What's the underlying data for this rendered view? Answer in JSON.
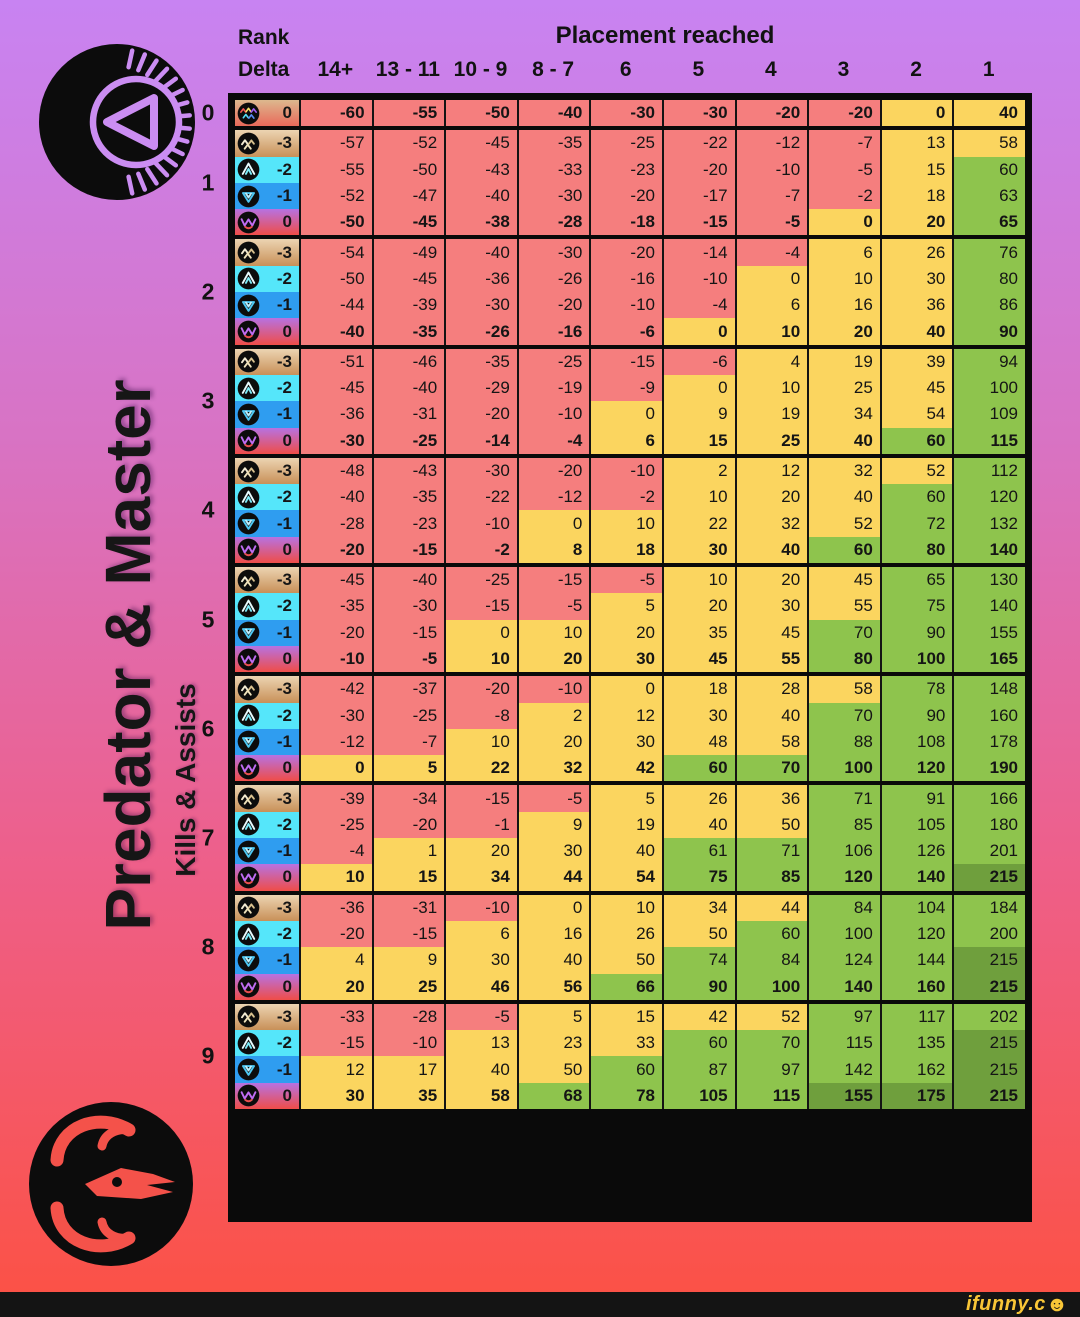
{
  "header": {
    "rank_label": "Rank",
    "delta_label": "Delta",
    "placement_label": "Placement reached"
  },
  "watermark": {
    "text": "ifunny.c",
    "smiley": "☻"
  },
  "icons": {
    "top_logo": "apex-predator-logo",
    "bottom_logo": "dragon-skull-logo",
    "badge_all": "all-ranks-badge",
    "badge_m3": "gold-badge",
    "badge_m2": "platinum-badge",
    "badge_m1": "diamond-badge",
    "badge_0": "master-badge"
  },
  "colors": {
    "red": "#f57e7e",
    "yellow": "#fbd55f",
    "green": "#8ec44d",
    "dark_green": "#6f9f3d",
    "bg_top": "#c883f2",
    "bg_bottom": "#fc5143",
    "logo_purple": "#cb8df2",
    "logo_red": "#f4524a",
    "watermark_yellow": "#f9c637"
  },
  "chart_data": {
    "type": "heatmap",
    "title": "Predator & Master",
    "subtitle": "Kills & Assists",
    "columns": [
      "14+",
      "13 - 11",
      "10 - 9",
      "8 - 7",
      "6",
      "5",
      "4",
      "3",
      "2",
      "1"
    ],
    "color_key": {
      "r": "red (RP loss)",
      "y": "yellow (0 to 59 RP)",
      "g": "green (60+ RP)",
      "d": "dark green (capped)"
    },
    "groups": [
      {
        "kills": "0",
        "rows": [
          {
            "delta": "0",
            "badge": "all-ranks",
            "bold": true,
            "values": [
              -60,
              -55,
              -50,
              -40,
              -30,
              -30,
              -20,
              -20,
              0,
              40
            ],
            "colors": "rrrrrrrryy"
          }
        ]
      },
      {
        "kills": "1",
        "rows": [
          {
            "delta": "-3",
            "badge": "gold",
            "bold": false,
            "values": [
              -57,
              -52,
              -45,
              -35,
              -25,
              -22,
              -12,
              -7,
              13,
              58
            ],
            "colors": "rrrrrrrryy"
          },
          {
            "delta": "-2",
            "badge": "platinum",
            "bold": false,
            "values": [
              -55,
              -50,
              -43,
              -33,
              -23,
              -20,
              -10,
              -5,
              15,
              60
            ],
            "colors": "rrrrrrrryg"
          },
          {
            "delta": "-1",
            "badge": "diamond",
            "bold": false,
            "values": [
              -52,
              -47,
              -40,
              -30,
              -20,
              -17,
              -7,
              -2,
              18,
              63
            ],
            "colors": "rrrrrrrryg"
          },
          {
            "delta": "0",
            "badge": "master",
            "bold": true,
            "values": [
              -50,
              -45,
              -38,
              -28,
              -18,
              -15,
              -5,
              0,
              20,
              65
            ],
            "colors": "rrrrrrryyg"
          }
        ]
      },
      {
        "kills": "2",
        "rows": [
          {
            "delta": "-3",
            "badge": "gold",
            "bold": false,
            "values": [
              -54,
              -49,
              -40,
              -30,
              -20,
              -14,
              -4,
              6,
              26,
              76
            ],
            "colors": "rrrrrrryyg"
          },
          {
            "delta": "-2",
            "badge": "platinum",
            "bold": false,
            "values": [
              -50,
              -45,
              -36,
              -26,
              -16,
              -10,
              0,
              10,
              30,
              80
            ],
            "colors": "rrrrrryyyg"
          },
          {
            "delta": "-1",
            "badge": "diamond",
            "bold": false,
            "values": [
              -44,
              -39,
              -30,
              -20,
              -10,
              -4,
              6,
              16,
              36,
              86
            ],
            "colors": "rrrrrryyyg"
          },
          {
            "delta": "0",
            "badge": "master",
            "bold": true,
            "values": [
              -40,
              -35,
              -26,
              -16,
              -6,
              0,
              10,
              20,
              40,
              90
            ],
            "colors": "rrrrryyyyg"
          }
        ]
      },
      {
        "kills": "3",
        "rows": [
          {
            "delta": "-3",
            "badge": "gold",
            "bold": false,
            "values": [
              -51,
              -46,
              -35,
              -25,
              -15,
              -6,
              4,
              19,
              39,
              94
            ],
            "colors": "rrrrrryyyg"
          },
          {
            "delta": "-2",
            "badge": "platinum",
            "bold": false,
            "values": [
              -45,
              -40,
              -29,
              -19,
              -9,
              0,
              10,
              25,
              45,
              100
            ],
            "colors": "rrrrryyyyg"
          },
          {
            "delta": "-1",
            "badge": "diamond",
            "bold": false,
            "values": [
              -36,
              -31,
              -20,
              -10,
              0,
              9,
              19,
              34,
              54,
              109
            ],
            "colors": "rrrryyyyyg"
          },
          {
            "delta": "0",
            "badge": "master",
            "bold": true,
            "values": [
              -30,
              -25,
              -14,
              -4,
              6,
              15,
              25,
              40,
              60,
              115
            ],
            "colors": "rrrryyyygg"
          }
        ]
      },
      {
        "kills": "4",
        "rows": [
          {
            "delta": "-3",
            "badge": "gold",
            "bold": false,
            "values": [
              -48,
              -43,
              -30,
              -20,
              -10,
              2,
              12,
              32,
              52,
              112
            ],
            "colors": "rrrrryyyyg"
          },
          {
            "delta": "-2",
            "badge": "platinum",
            "bold": false,
            "values": [
              -40,
              -35,
              -22,
              -12,
              -2,
              10,
              20,
              40,
              60,
              120
            ],
            "colors": "rrrrryyygg"
          },
          {
            "delta": "-1",
            "badge": "diamond",
            "bold": false,
            "values": [
              -28,
              -23,
              -10,
              0,
              10,
              22,
              32,
              52,
              72,
              132
            ],
            "colors": "rrryyyyygg"
          },
          {
            "delta": "0",
            "badge": "master",
            "bold": true,
            "values": [
              -20,
              -15,
              -2,
              8,
              18,
              30,
              40,
              60,
              80,
              140
            ],
            "colors": "rrryyyyggg"
          }
        ]
      },
      {
        "kills": "5",
        "rows": [
          {
            "delta": "-3",
            "badge": "gold",
            "bold": false,
            "values": [
              -45,
              -40,
              -25,
              -15,
              -5,
              10,
              20,
              45,
              65,
              130
            ],
            "colors": "rrrrryyygg"
          },
          {
            "delta": "-2",
            "badge": "platinum",
            "bold": false,
            "values": [
              -35,
              -30,
              -15,
              -5,
              5,
              20,
              30,
              55,
              75,
              140
            ],
            "colors": "rrrryyyygg"
          },
          {
            "delta": "-1",
            "badge": "diamond",
            "bold": false,
            "values": [
              -20,
              -15,
              0,
              10,
              20,
              35,
              45,
              70,
              90,
              155
            ],
            "colors": "rryyyyyggg"
          },
          {
            "delta": "0",
            "badge": "master",
            "bold": true,
            "values": [
              -10,
              -5,
              10,
              20,
              30,
              45,
              55,
              80,
              100,
              165
            ],
            "colors": "rryyyyyggg"
          }
        ]
      },
      {
        "kills": "6",
        "rows": [
          {
            "delta": "-3",
            "badge": "gold",
            "bold": false,
            "values": [
              -42,
              -37,
              -20,
              -10,
              0,
              18,
              28,
              58,
              78,
              148
            ],
            "colors": "rrrryyyygg"
          },
          {
            "delta": "-2",
            "badge": "platinum",
            "bold": false,
            "values": [
              -30,
              -25,
              -8,
              2,
              12,
              30,
              40,
              70,
              90,
              160
            ],
            "colors": "rrryyyyggg"
          },
          {
            "delta": "-1",
            "badge": "diamond",
            "bold": false,
            "values": [
              -12,
              -7,
              10,
              20,
              30,
              48,
              58,
              88,
              108,
              178
            ],
            "colors": "rryyyyyggg"
          },
          {
            "delta": "0",
            "badge": "master",
            "bold": true,
            "values": [
              0,
              5,
              22,
              32,
              42,
              60,
              70,
              100,
              120,
              190
            ],
            "colors": "yyyyyggggg"
          }
        ]
      },
      {
        "kills": "7",
        "rows": [
          {
            "delta": "-3",
            "badge": "gold",
            "bold": false,
            "values": [
              -39,
              -34,
              -15,
              -5,
              5,
              26,
              36,
              71,
              91,
              166
            ],
            "colors": "rrrryyyggg"
          },
          {
            "delta": "-2",
            "badge": "platinum",
            "bold": false,
            "values": [
              -25,
              -20,
              -1,
              9,
              19,
              40,
              50,
              85,
              105,
              180
            ],
            "colors": "rrryyyyggg"
          },
          {
            "delta": "-1",
            "badge": "diamond",
            "bold": false,
            "values": [
              -4,
              1,
              20,
              30,
              40,
              61,
              71,
              106,
              126,
              201
            ],
            "colors": "ryyyyggggg"
          },
          {
            "delta": "0",
            "badge": "master",
            "bold": true,
            "values": [
              10,
              15,
              34,
              44,
              54,
              75,
              85,
              120,
              140,
              215
            ],
            "colors": "yyyyyggggd"
          }
        ]
      },
      {
        "kills": "8",
        "rows": [
          {
            "delta": "-3",
            "badge": "gold",
            "bold": false,
            "values": [
              -36,
              -31,
              -10,
              0,
              10,
              34,
              44,
              84,
              104,
              184
            ],
            "colors": "rrryyyyggg"
          },
          {
            "delta": "-2",
            "badge": "platinum",
            "bold": false,
            "values": [
              -20,
              -15,
              6,
              16,
              26,
              50,
              60,
              100,
              120,
              200
            ],
            "colors": "rryyyygggg"
          },
          {
            "delta": "-1",
            "badge": "diamond",
            "bold": false,
            "values": [
              4,
              9,
              30,
              40,
              50,
              74,
              84,
              124,
              144,
              215
            ],
            "colors": "yyyyyggggd"
          },
          {
            "delta": "0",
            "badge": "master",
            "bold": true,
            "values": [
              20,
              25,
              46,
              56,
              66,
              90,
              100,
              140,
              160,
              215
            ],
            "colors": "yyyygggggd"
          }
        ]
      },
      {
        "kills": "9",
        "rows": [
          {
            "delta": "-3",
            "badge": "gold",
            "bold": false,
            "values": [
              -33,
              -28,
              -5,
              5,
              15,
              42,
              52,
              97,
              117,
              202
            ],
            "colors": "rrryyyyggg"
          },
          {
            "delta": "-2",
            "badge": "platinum",
            "bold": false,
            "values": [
              -15,
              -10,
              13,
              23,
              33,
              60,
              70,
              115,
              135,
              215
            ],
            "colors": "rryyyggggd"
          },
          {
            "delta": "-1",
            "badge": "diamond",
            "bold": false,
            "values": [
              12,
              17,
              40,
              50,
              60,
              87,
              97,
              142,
              162,
              215
            ],
            "colors": "yyyygggggd"
          },
          {
            "delta": "0",
            "badge": "master",
            "bold": true,
            "values": [
              30,
              35,
              58,
              68,
              78,
              105,
              115,
              155,
              175,
              215
            ],
            "colors": "yyyggggddd"
          }
        ]
      }
    ]
  }
}
